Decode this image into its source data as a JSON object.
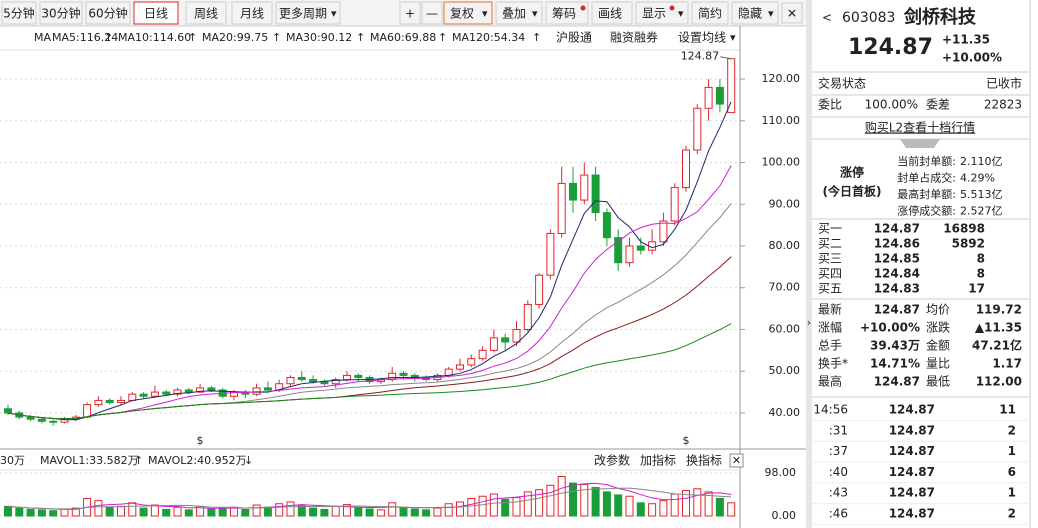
{
  "toolbar": {
    "periods": [
      "5分钟",
      "30分钟",
      "60分钟",
      "日线",
      "周线",
      "月线",
      "更多周期"
    ],
    "tools": [
      "+",
      "—",
      "复权",
      "叠加",
      "筹码",
      "画线",
      "显示",
      "简约",
      "隐藏"
    ]
  },
  "legend": {
    "ma": "MA",
    "items": [
      "MA5:116.24",
      "MA10:114.60",
      "MA20:99.75",
      "MA30:90.12",
      "MA60:69.88",
      "MA120:54.34"
    ],
    "links": [
      "沪股通",
      "融资融券",
      "设置均线"
    ]
  },
  "chart": {
    "type": "candlestick",
    "max_label": "124.87",
    "ylim": [
      34,
      126
    ],
    "yticks": [
      {
        "value": 120,
        "label": "120.00"
      },
      {
        "value": 110,
        "label": "110.00"
      },
      {
        "value": 100,
        "label": "100.00"
      },
      {
        "value": 90,
        "label": "90.00"
      },
      {
        "value": 80,
        "label": "80.00"
      },
      {
        "value": 70,
        "label": "70.00"
      },
      {
        "value": 60,
        "label": "60.00"
      },
      {
        "value": 50,
        "label": "50.00"
      },
      {
        "value": 40,
        "label": "40.00"
      }
    ],
    "candles": [
      [
        41,
        40,
        42,
        39.5
      ],
      [
        40,
        39,
        40.5,
        38.5
      ],
      [
        39,
        38.5,
        39.5,
        38
      ],
      [
        38.5,
        38,
        39,
        37.5
      ],
      [
        38,
        37.8,
        38.5,
        37
      ],
      [
        37.8,
        38.5,
        39,
        37.5
      ],
      [
        38.5,
        39,
        39.5,
        38
      ],
      [
        39,
        42,
        42.5,
        38.8
      ],
      [
        42,
        43,
        44,
        41.5
      ],
      [
        43,
        42.5,
        43.5,
        42
      ],
      [
        42.5,
        43,
        44,
        42
      ],
      [
        43,
        44.5,
        45,
        42.8
      ],
      [
        44.5,
        44,
        45,
        43.5
      ],
      [
        44,
        45,
        46.5,
        43.8
      ],
      [
        45,
        44.5,
        45.5,
        44
      ],
      [
        44.5,
        45.5,
        46,
        44
      ],
      [
        45.5,
        45,
        46,
        44.5
      ],
      [
        45,
        46,
        47,
        44.8
      ],
      [
        46,
        45.5,
        46.5,
        45
      ],
      [
        45.5,
        44,
        46,
        43.5
      ],
      [
        44,
        45,
        45.5,
        43
      ],
      [
        45,
        44.5,
        45.5,
        43.5
      ],
      [
        44.5,
        46,
        47,
        44
      ],
      [
        46,
        45.5,
        47.5,
        45
      ],
      [
        45.5,
        47,
        48,
        45
      ],
      [
        47,
        48.5,
        49,
        46.5
      ],
      [
        48.5,
        48,
        50,
        47.5
      ],
      [
        48,
        47.5,
        49,
        47
      ],
      [
        47.5,
        47,
        48,
        46.5
      ],
      [
        47,
        48,
        48.5,
        46
      ],
      [
        48,
        49,
        50,
        47.5
      ],
      [
        49,
        48.5,
        49.5,
        47.5
      ],
      [
        48.5,
        47.5,
        49,
        47
      ],
      [
        47.5,
        48,
        48.5,
        47
      ],
      [
        48,
        49.5,
        51,
        47.5
      ],
      [
        49.5,
        49,
        50,
        48
      ],
      [
        49,
        48.5,
        49.5,
        47.5
      ],
      [
        48.5,
        48,
        49,
        47.5
      ],
      [
        48,
        49,
        49.5,
        47.5
      ],
      [
        49,
        50.5,
        51,
        48.5
      ],
      [
        50.5,
        51.5,
        53,
        50
      ],
      [
        51.5,
        53,
        54,
        51
      ],
      [
        53,
        55,
        56,
        52.5
      ],
      [
        55,
        58,
        60,
        54.5
      ],
      [
        58,
        57,
        59,
        55
      ],
      [
        57,
        60,
        62,
        56
      ],
      [
        60,
        66,
        67,
        59.5
      ],
      [
        66,
        73,
        73.5,
        65
      ],
      [
        73,
        83,
        84,
        72
      ],
      [
        83,
        95,
        99,
        82
      ],
      [
        95,
        91,
        99,
        88
      ],
      [
        91,
        97,
        100,
        90
      ],
      [
        97,
        88,
        99,
        86
      ],
      [
        88,
        82,
        89,
        80
      ],
      [
        82,
        76,
        84,
        74
      ],
      [
        76,
        80,
        82,
        75
      ],
      [
        80,
        79,
        82,
        78
      ],
      [
        79,
        81,
        84,
        78
      ],
      [
        81,
        86,
        88,
        80
      ],
      [
        86,
        94,
        95,
        85
      ],
      [
        94,
        103,
        104,
        93
      ],
      [
        103,
        113,
        114,
        102
      ],
      [
        113,
        118,
        120,
        110
      ],
      [
        118,
        114,
        120,
        112
      ],
      [
        112,
        124.87,
        124.87,
        112
      ]
    ],
    "volume_header": [
      "30万",
      "MAVOL1:33.582万",
      "MAVOL2:40.952万"
    ],
    "volume_links": [
      "改参数",
      "加指标",
      "换指标"
    ],
    "vlim": [
      0,
      98
    ],
    "vticks": [
      {
        "value": 98,
        "label": "98.00"
      },
      {
        "value": 0,
        "label": "0.00"
      }
    ],
    "volumes": [
      22,
      18,
      15,
      14,
      12,
      16,
      18,
      40,
      35,
      20,
      22,
      30,
      18,
      25,
      15,
      20,
      14,
      22,
      16,
      18,
      20,
      15,
      25,
      20,
      28,
      32,
      24,
      18,
      15,
      22,
      26,
      18,
      16,
      14,
      30,
      20,
      16,
      14,
      18,
      28,
      32,
      40,
      45,
      50,
      38,
      42,
      55,
      60,
      70,
      90,
      75,
      72,
      65,
      55,
      48,
      45,
      30,
      28,
      35,
      50,
      58,
      62,
      55,
      40,
      30
    ]
  },
  "panel": {
    "code": "603083",
    "name": "剑桥科技",
    "price": "124.87",
    "change": "+11.35",
    "pct": "+10.00%",
    "status": [
      "交易状态",
      "已收市"
    ],
    "weibi": [
      "委比",
      "100.00%",
      "委差",
      "22823"
    ],
    "l2": "购买L2查看十档行情",
    "limit": {
      "badge": "涨停",
      "sub": "(今日首板)",
      "rows": [
        [
          "当前封单额:",
          "2.110亿"
        ],
        [
          "封单占成交:",
          "4.29%"
        ],
        [
          "最高封单额:",
          "5.513亿"
        ],
        [
          "涨停成交额:",
          "2.527亿"
        ]
      ]
    },
    "bids": [
      [
        "买一",
        "124.87",
        "16898"
      ],
      [
        "买二",
        "124.86",
        "5892"
      ],
      [
        "买三",
        "124.85",
        "8"
      ],
      [
        "买四",
        "124.84",
        "8"
      ],
      [
        "买五",
        "124.83",
        "17"
      ]
    ],
    "stats": [
      [
        "最新",
        "124.87",
        "均价",
        "119.72"
      ],
      [
        "涨幅",
        "+10.00%",
        "涨跌",
        "▲11.35"
      ],
      [
        "总手",
        "39.43万",
        "金额",
        "47.21亿"
      ],
      [
        "换手*",
        "14.71%",
        "量比",
        "1.17"
      ],
      [
        "最高",
        "124.87",
        "最低",
        "112.00"
      ]
    ],
    "ticks": [
      [
        "14:56",
        "124.87",
        "11"
      ],
      [
        ":31",
        "124.87",
        "2"
      ],
      [
        ":37",
        "124.87",
        "1"
      ],
      [
        ":40",
        "124.87",
        "6"
      ],
      [
        ":43",
        "124.87",
        "1"
      ],
      [
        ":46",
        "124.87",
        "2"
      ]
    ]
  }
}
